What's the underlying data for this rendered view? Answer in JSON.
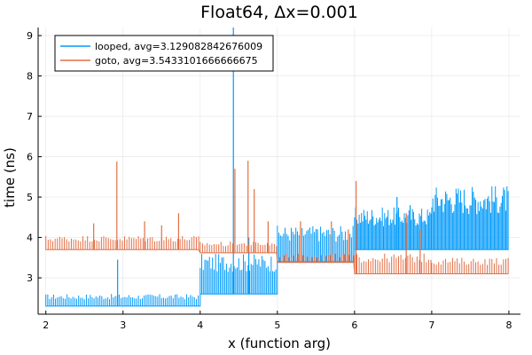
{
  "chart_data": {
    "type": "line",
    "title": "Float64, Δx=0.001",
    "xlabel": "x (function arg)",
    "ylabel": "time (ns)",
    "xlim": [
      1.9,
      8.15
    ],
    "ylim": [
      2.1,
      9.2
    ],
    "xticks": [
      2,
      3,
      4,
      5,
      6,
      7,
      8
    ],
    "yticks": [
      3,
      4,
      5,
      6,
      7,
      8,
      9
    ],
    "grid": true,
    "legend_position": "top-left",
    "series": [
      {
        "name": "looped, avg=3.129082842676009",
        "color": "#009AFA",
        "segments": [
          {
            "x_from": 2,
            "x_to": 4,
            "base": 2.3,
            "high": 2.6,
            "step": 0.025
          },
          {
            "x_from": 4,
            "x_to": 5,
            "base": 2.6,
            "high": 3.6,
            "step": 0.02
          },
          {
            "x_from": 5,
            "x_to": 6,
            "base": 3.4,
            "high": 4.3,
            "step": 0.02
          },
          {
            "x_from": 6,
            "x_to": 7,
            "base": 3.7,
            "high": 4.75,
            "step": 0.015
          },
          {
            "x_from": 7,
            "x_to": 8,
            "base": 3.7,
            "high": 5.3,
            "step": 0.015
          }
        ],
        "spikes": [
          {
            "x": 2.93,
            "y": 3.45
          },
          {
            "x": 4.43,
            "y": 9.2
          },
          {
            "x": 4.63,
            "y": 4.0
          },
          {
            "x": 5.52,
            "y": 4.2
          },
          {
            "x": 6.55,
            "y": 5.0
          },
          {
            "x": 6.72,
            "y": 4.8
          }
        ]
      },
      {
        "name": "goto, avg=3.5433101666666675",
        "color": "#E26F46",
        "segments": [
          {
            "x_from": 2,
            "x_to": 4,
            "base": 3.7,
            "high": 4.05,
            "step": 0.03
          },
          {
            "x_from": 4,
            "x_to": 5,
            "base": 3.62,
            "high": 3.9,
            "step": 0.03
          },
          {
            "x_from": 5,
            "x_to": 6,
            "base": 3.38,
            "high": 3.6,
            "step": 0.03
          },
          {
            "x_from": 6,
            "x_to": 7,
            "base": 3.1,
            "high": 3.6,
            "step": 0.03
          },
          {
            "x_from": 7,
            "x_to": 8,
            "base": 3.1,
            "high": 3.5,
            "step": 0.03
          }
        ],
        "spikes": [
          {
            "x": 2.62,
            "y": 4.35
          },
          {
            "x": 2.92,
            "y": 5.88
          },
          {
            "x": 3.28,
            "y": 4.4
          },
          {
            "x": 3.5,
            "y": 4.3
          },
          {
            "x": 3.72,
            "y": 4.6
          },
          {
            "x": 4.45,
            "y": 5.7
          },
          {
            "x": 4.62,
            "y": 5.9
          },
          {
            "x": 4.7,
            "y": 5.2
          },
          {
            "x": 4.88,
            "y": 4.4
          },
          {
            "x": 5.3,
            "y": 4.4
          },
          {
            "x": 5.7,
            "y": 4.4
          },
          {
            "x": 5.92,
            "y": 4.2
          },
          {
            "x": 6.02,
            "y": 5.4
          },
          {
            "x": 6.67,
            "y": 4.6
          },
          {
            "x": 6.85,
            "y": 4.2
          }
        ]
      }
    ]
  }
}
